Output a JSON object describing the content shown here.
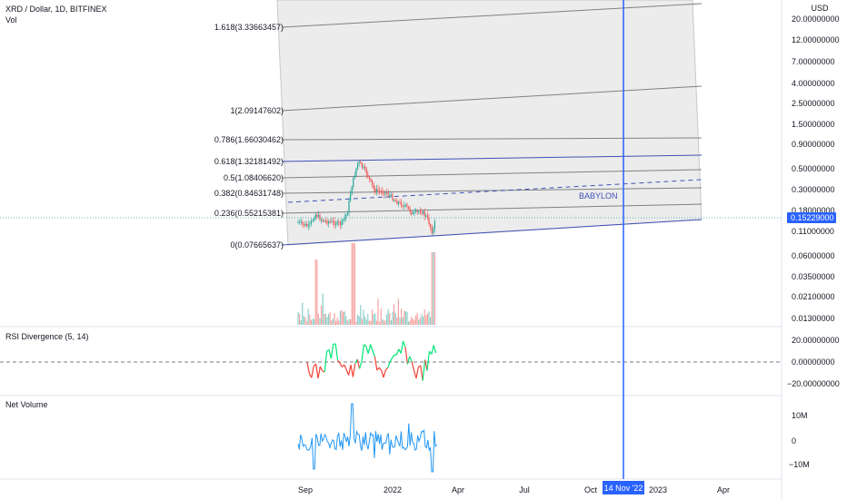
{
  "header": {
    "symbol_line": "XRD / Dollar, 1D, BITFINEX",
    "vol_label": "Vol",
    "currency": "USD"
  },
  "panes": {
    "rsi_title": "RSI Divergence (5, 14)",
    "net_volume_title": "Net Volume"
  },
  "price_axis": {
    "ticks": [
      "20.00000000",
      "12.00000000",
      "7.00000000",
      "4.00000000",
      "2.50000000",
      "1.50000000",
      "0.90000000",
      "0.50000000",
      "0.30000000",
      "0.18000000",
      "0.11000000",
      "0.06000000",
      "0.03500000",
      "0.02100000",
      "0.01300000"
    ],
    "current_price": "0.15229000"
  },
  "rsi_axis": {
    "ticks": [
      "20.00000000",
      "0.00000000",
      "−20.00000000"
    ]
  },
  "net_volume_axis": {
    "ticks": [
      "10M",
      "0",
      "−10M"
    ]
  },
  "time_axis": {
    "ticks": [
      "Sep",
      "2022",
      "Apr",
      "Jul",
      "Oct",
      "2023",
      "Apr"
    ],
    "cursor_label": "14 Nov '22"
  },
  "fib_levels": [
    {
      "label": "1.618(3.33663457)"
    },
    {
      "label": "1(2.09147602)"
    },
    {
      "label": "0.786(1.66030462)"
    },
    {
      "label": "0.618(1.32181492)"
    },
    {
      "label": "0.5(1.08406620)"
    },
    {
      "label": "0.382(0.84631748)"
    },
    {
      "label": "0.236(0.55215381)"
    },
    {
      "label": "0(0.07665637)"
    }
  ],
  "annotation": {
    "text": "BABYLON"
  },
  "colors": {
    "up": "#26a69a",
    "down": "#ef5350",
    "rsi_up": "#00e676",
    "rsi_down": "#f44336",
    "net_volume": "#2196f3",
    "cursor": "#2962ff",
    "channel": "#3f51b5",
    "fib_fill": "#e6e6e6",
    "price_tag": "#2962ff"
  }
}
